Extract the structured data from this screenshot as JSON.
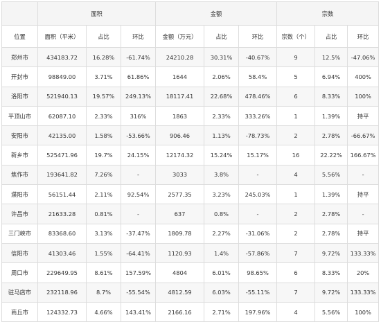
{
  "groups": {
    "area": "面积",
    "amount": "金额",
    "count": "宗数"
  },
  "columns": [
    "位置",
    "面积（平米）",
    "占比",
    "环比",
    "金额（万元）",
    "占比",
    "环比",
    "宗数（个）",
    "占比",
    "环比"
  ],
  "rows": [
    [
      "郑州市",
      "434183.72",
      "16.28%",
      "-61.74%",
      "24210.28",
      "30.31%",
      "-40.67%",
      "9",
      "12.5%",
      "-47.06%"
    ],
    [
      "开封市",
      "98849.00",
      "3.71%",
      "61.86%",
      "1644",
      "2.06%",
      "58.4%",
      "5",
      "6.94%",
      "400%"
    ],
    [
      "洛阳市",
      "521940.13",
      "19.57%",
      "249.13%",
      "18117.41",
      "22.68%",
      "478.46%",
      "6",
      "8.33%",
      "100%"
    ],
    [
      "平顶山市",
      "62087.10",
      "2.33%",
      "316%",
      "1863",
      "2.33%",
      "333.26%",
      "1",
      "1.39%",
      "持平"
    ],
    [
      "安阳市",
      "42135.00",
      "1.58%",
      "-53.66%",
      "906.46",
      "1.13%",
      "-78.73%",
      "2",
      "2.78%",
      "-66.67%"
    ],
    [
      "新乡市",
      "525471.96",
      "19.7%",
      "24.15%",
      "12174.32",
      "15.24%",
      "15.17%",
      "16",
      "22.22%",
      "166.67%"
    ],
    [
      "焦作市",
      "193641.82",
      "7.26%",
      "-",
      "3033",
      "3.8%",
      "-",
      "4",
      "5.56%",
      "-"
    ],
    [
      "濮阳市",
      "56151.44",
      "2.11%",
      "92.54%",
      "2577.35",
      "3.23%",
      "245.03%",
      "1",
      "1.39%",
      "持平"
    ],
    [
      "许昌市",
      "21633.28",
      "0.81%",
      "-",
      "637",
      "0.8%",
      "-",
      "2",
      "2.78%",
      "-"
    ],
    [
      "三门峡市",
      "83368.60",
      "3.13%",
      "-37.47%",
      "1809.78",
      "2.27%",
      "-31.06%",
      "2",
      "2.78%",
      "持平"
    ],
    [
      "信阳市",
      "41303.46",
      "1.55%",
      "-64.41%",
      "1120.93",
      "1.4%",
      "-57.86%",
      "7",
      "9.72%",
      "133.33%"
    ],
    [
      "周口市",
      "229649.95",
      "8.61%",
      "157.59%",
      "4804",
      "6.01%",
      "98.65%",
      "6",
      "8.33%",
      "20%"
    ],
    [
      "驻马店市",
      "232118.96",
      "8.7%",
      "-55.54%",
      "4812.59",
      "6.03%",
      "-55.11%",
      "7",
      "9.72%",
      "133.33%"
    ],
    [
      "商丘市",
      "124332.73",
      "4.66%",
      "143.41%",
      "2166.16",
      "2.71%",
      "197.96%",
      "4",
      "5.56%",
      "100%"
    ]
  ]
}
